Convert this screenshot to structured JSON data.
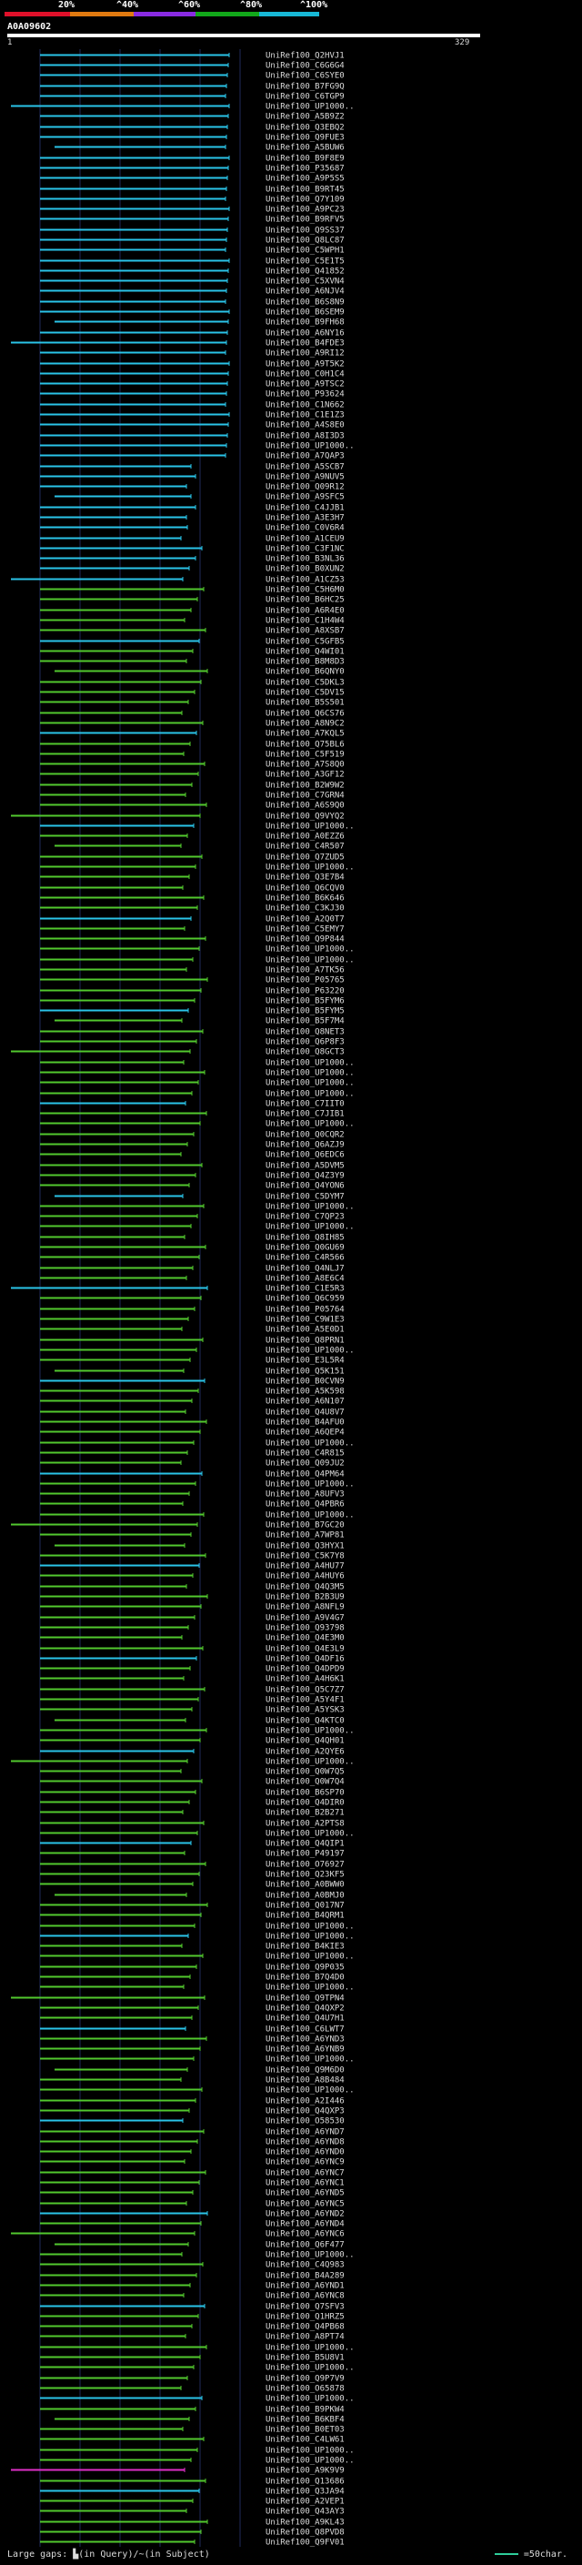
{
  "scale": {
    "labels": [
      "20%",
      "^40%",
      "^60%",
      "^80%",
      "^100%"
    ],
    "bands": [
      "#e0102a",
      "#e07a10",
      "#8a2be2",
      "#12a81a",
      "#17b8d6"
    ]
  },
  "query": {
    "id": "A0A09602",
    "start": "1",
    "end": "329"
  },
  "colors": {
    "high": "#2ac4e8",
    "mid": "#52c82e",
    "low": "#e030c8",
    "grid": "#1f2a5a"
  },
  "hits": [
    "UniRef100_Q2HVJ1",
    "UniRef100_C6G6G4",
    "UniRef100_C6SYE0",
    "UniRef100_B7FG9Q",
    "UniRef100_C6TGP9",
    "UniRef100_UP1000..",
    "UniRef100_A5B9Z2",
    "UniRef100_Q3EBQ2",
    "UniRef100_Q9FUE3",
    "UniRef100_A5BUW6",
    "UniRef100_B9F8E9",
    "UniRef100_P35687",
    "UniRef100_A9P5S5",
    "UniRef100_B9RT45",
    "UniRef100_Q7Y109",
    "UniRef100_A9PC23",
    "UniRef100_B9RFV5",
    "UniRef100_Q9SS37",
    "UniRef100_Q8LC87",
    "UniRef100_C5WPH1",
    "UniRef100_C5E1T5",
    "UniRef100_Q41852",
    "UniRef100_C5XVN4",
    "UniRef100_A6NJV4",
    "UniRef100_B6S8N9",
    "UniRef100_B6SEM9",
    "UniRef100_B9FH68",
    "UniRef100_A6NY16",
    "UniRef100_B4FDE3",
    "UniRef100_A9RI12",
    "UniRef100_A9T5K2",
    "UniRef100_C0H1C4",
    "UniRef100_A9TSC2",
    "UniRef100_P93624",
    "UniRef100_C1N662",
    "UniRef100_C1E1Z3",
    "UniRef100_A4S8E0",
    "UniRef100_A8I3D3",
    "UniRef100_UP1000..",
    "UniRef100_A7QAP3",
    "UniRef100_A5SCB7",
    "UniRef100_A9NUV5",
    "UniRef100_Q09R12",
    "UniRef100_A9SFC5",
    "UniRef100_C4JJB1",
    "UniRef100_A3E3H7",
    "UniRef100_C0V6R4",
    "UniRef100_A1CEU9",
    "UniRef100_C3F1NC",
    "UniRef100_B3NL36",
    "UniRef100_B0XUN2",
    "UniRef100_A1CZ53",
    "UniRef100_C5H6M0",
    "UniRef100_B6HC25",
    "UniRef100_A6R4E0",
    "UniRef100_C1H4W4",
    "UniRef100_A8XSB7",
    "UniRef100_C5GFB5",
    "UniRef100_Q4WI01",
    "UniRef100_B8M8D3",
    "UniRef100_B6QNY0",
    "UniRef100_C5DKL3",
    "UniRef100_C5DV15",
    "UniRef100_B5S501",
    "UniRef100_Q6CS76",
    "UniRef100_A8N9C2",
    "UniRef100_A7KQL5",
    "UniRef100_Q75BL6",
    "UniRef100_C5F519",
    "UniRef100_A7S8Q0",
    "UniRef100_A3GF12",
    "UniRef100_B2W9W2",
    "UniRef100_C7GRN4",
    "UniRef100_A6S9Q0",
    "UniRef100_Q9VYQ2",
    "UniRef100_UP1000..",
    "UniRef100_A0EZZ6",
    "UniRef100_C4R507",
    "UniRef100_Q7ZUD5",
    "UniRef100_UP1000..",
    "UniRef100_Q3E7B4",
    "UniRef100_Q6CQV0",
    "UniRef100_B6K646",
    "UniRef100_C3KJ30",
    "UniRef100_A2Q0T7",
    "UniRef100_C5EMY7",
    "UniRef100_Q9P844",
    "UniRef100_UP1000..",
    "UniRef100_UP1000..",
    "UniRef100_A7TK56",
    "UniRef100_P05765",
    "UniRef100_P63220",
    "UniRef100_B5FYM6",
    "UniRef100_B5FYM5",
    "UniRef100_B5F7M4",
    "UniRef100_Q8NET3",
    "UniRef100_Q6P8F3",
    "UniRef100_Q8GCT3",
    "UniRef100_UP1000..",
    "UniRef100_UP1000..",
    "UniRef100_UP1000..",
    "UniRef100_UP1000..",
    "UniRef100_C7IIT0",
    "UniRef100_C7JIB1",
    "UniRef100_UP1000..",
    "UniRef100_Q0CQR2",
    "UniRef100_Q6AZJ9",
    "UniRef100_Q6EDC6",
    "UniRef100_A5DVM5",
    "UniRef100_Q4Z3Y9",
    "UniRef100_Q4YON6",
    "UniRef100_C5DYM7",
    "UniRef100_UP1000..",
    "UniRef100_C7QP23",
    "UniRef100_UP1000..",
    "UniRef100_Q8IH85",
    "UniRef100_Q0GU69",
    "UniRef100_C4R566",
    "UniRef100_Q4NLJ7",
    "UniRef100_A8E6C4",
    "UniRef100_C1E5R3",
    "UniRef100_Q6C959",
    "UniRef100_P05764",
    "UniRef100_C9W1E3",
    "UniRef100_A5E0D1",
    "UniRef100_Q8PRN1",
    "UniRef100_UP1000..",
    "UniRef100_E3L5R4",
    "UniRef100_Q5K151",
    "UniRef100_B0CVN9",
    "UniRef100_A5K598",
    "UniRef100_A6N107",
    "UniRef100_Q4U8V7",
    "UniRef100_B4AFU0",
    "UniRef100_A6QEP4",
    "UniRef100_UP1000..",
    "UniRef100_C4R815",
    "UniRef100_Q09JU2",
    "UniRef100_Q4PM64",
    "UniRef100_UP1000..",
    "UniRef100_A8UFV3",
    "UniRef100_Q4PBR6",
    "UniRef100_UP1000..",
    "UniRef100_B7GC20",
    "UniRef100_A7WP81",
    "UniRef100_Q3HYX1",
    "UniRef100_C5K7Y8",
    "UniRef100_A4HU77",
    "UniRef100_A4HUY6",
    "UniRef100_Q4Q3M5",
    "UniRef100_B2B3U9",
    "UniRef100_A8NFL9",
    "UniRef100_A9V4G7",
    "UniRef100_Q93798",
    "UniRef100_Q4E3M0",
    "UniRef100_Q4E3L9",
    "UniRef100_Q4DF16",
    "UniRef100_Q4DPD9",
    "UniRef100_A4H6K1",
    "UniRef100_Q5C7Z7",
    "UniRef100_A5Y4F1",
    "UniRef100_A5YSK3",
    "UniRef100_Q4KTC0",
    "UniRef100_UP1000..",
    "UniRef100_Q4QH01",
    "UniRef100_A2QYE6",
    "UniRef100_UP1000..",
    "UniRef100_Q0W7Q5",
    "UniRef100_Q0W7Q4",
    "UniRef100_B6SP70",
    "UniRef100_Q4DIR0",
    "UniRef100_B2B271",
    "UniRef100_A2PTS8",
    "UniRef100_UP1000..",
    "UniRef100_Q4QIP1",
    "UniRef100_P49197",
    "UniRef100_O76927",
    "UniRef100_Q23KF5",
    "UniRef100_A0BWW0",
    "UniRef100_A0BMJ0",
    "UniRef100_Q017N7",
    "UniRef100_B4QRM1",
    "UniRef100_UP1000..",
    "UniRef100_UP1000..",
    "UniRef100_B4KIE3",
    "UniRef100_UP1000..",
    "UniRef100_Q9P035",
    "UniRef100_B7Q4D0",
    "UniRef100_UP1000..",
    "UniRef100_Q9TPN4",
    "UniRef100_Q4QXP2",
    "UniRef100_Q4U7H1",
    "UniRef100_C6LWT7",
    "UniRef100_A6YND3",
    "UniRef100_A6YNB9",
    "UniRef100_UP1000..",
    "UniRef100_Q9M6D0",
    "UniRef100_A8B484",
    "UniRef100_UP1000..",
    "UniRef100_A2I446",
    "UniRef100_Q4QXP3",
    "UniRef100_O58530",
    "UniRef100_A6YND7",
    "UniRef100_A6YND8",
    "UniRef100_A6YND0",
    "UniRef100_A6YNC9",
    "UniRef100_A6YNC7",
    "UniRef100_A6YNC1",
    "UniRef100_A6YND5",
    "UniRef100_A6YNC5",
    "UniRef100_A6YND2",
    "UniRef100_A6YND4",
    "UniRef100_A6YNC6",
    "UniRef100_Q6F477",
    "UniRef100_UP1000..",
    "UniRef100_C4Q983",
    "UniRef100_B4A289",
    "UniRef100_A6YND1",
    "UniRef100_A6YNC8",
    "UniRef100_Q7SFV3",
    "UniRef100_Q1HRZ5",
    "UniRef100_Q4PB68",
    "UniRef100_A8PT74",
    "UniRef100_UP1000..",
    "UniRef100_B5U8V1",
    "UniRef100_UP1000..",
    "UniRef100_Q9P7V9",
    "UniRef100_O65878",
    "UniRef100_UP1000..",
    "UniRef100_B9PKW4",
    "UniRef100_B6KBF4",
    "UniRef100_B0ET03",
    "UniRef100_C4LW61",
    "UniRef100_UP1000..",
    "UniRef100_UP1000..",
    "UniRef100_A9K9V9",
    "UniRef100_Q13686",
    "UniRef100_Q3JA94",
    "UniRef100_A2VEP1",
    "UniRef100_Q43AY3",
    "UniRef100_A9KL43",
    "UniRef100_Q8PVD8",
    "UniRef100_Q9FV01"
  ],
  "footer": {
    "legend": "Large gaps: ▙(in Query)/~(in Subject)",
    "key": "=50char."
  }
}
